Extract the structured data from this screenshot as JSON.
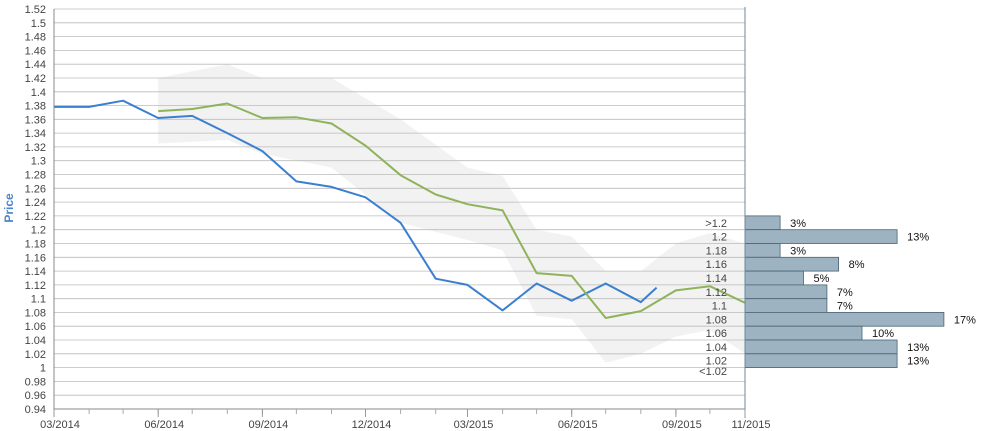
{
  "chart_data": {
    "type": "line",
    "title": "",
    "ylabel": "Price",
    "ylim": [
      0.94,
      1.52
    ],
    "ytick_step": 0.02,
    "yticks": [
      "0.94",
      "0.96",
      "0.98",
      "1",
      "1.02",
      "1.04",
      "1.06",
      "1.08",
      "1.1",
      "1.12",
      "1.14",
      "1.16",
      "1.18",
      "1.2",
      "1.22",
      "1.24",
      "1.26",
      "1.28",
      "1.3",
      "1.32",
      "1.34",
      "1.36",
      "1.38",
      "1.4",
      "1.42",
      "1.44",
      "1.46",
      "1.48",
      "1.5",
      "1.52"
    ],
    "xlim": [
      "2014-03-01",
      "2015-11-01"
    ],
    "xticks": [
      {
        "date": "2014-03-01",
        "label": "03/2014"
      },
      {
        "date": "2014-06-01",
        "label": "06/2014"
      },
      {
        "date": "2014-09-01",
        "label": "09/2014"
      },
      {
        "date": "2014-12-01",
        "label": "12/2014"
      },
      {
        "date": "2015-03-01",
        "label": "03/2015"
      },
      {
        "date": "2015-06-01",
        "label": "06/2015"
      },
      {
        "date": "2015-09-01",
        "label": "09/2015"
      },
      {
        "date": "2015-11-01",
        "label": "11/2015"
      }
    ],
    "grid": true,
    "colors": {
      "actual": "#3a7fd0",
      "forecast": "#8fb35a",
      "band": "#f2f2f2",
      "grid": "#bbbbbb",
      "histogram": "#9db3c2",
      "histogram_edge": "#4a6373"
    },
    "series": [
      {
        "key": "actual",
        "points": [
          {
            "x": "2014-03-01",
            "y": 1.378
          },
          {
            "x": "2014-04-01",
            "y": 1.378
          },
          {
            "x": "2014-05-01",
            "y": 1.387
          },
          {
            "x": "2014-06-01",
            "y": 1.362
          },
          {
            "x": "2014-07-01",
            "y": 1.365
          },
          {
            "x": "2014-08-01",
            "y": 1.34
          },
          {
            "x": "2014-09-01",
            "y": 1.314
          },
          {
            "x": "2014-10-01",
            "y": 1.27
          },
          {
            "x": "2014-11-01",
            "y": 1.262
          },
          {
            "x": "2014-12-01",
            "y": 1.247
          },
          {
            "x": "2015-01-01",
            "y": 1.21
          },
          {
            "x": "2015-02-01",
            "y": 1.129
          },
          {
            "x": "2015-03-01",
            "y": 1.12
          },
          {
            "x": "2015-04-01",
            "y": 1.083
          },
          {
            "x": "2015-05-01",
            "y": 1.122
          },
          {
            "x": "2015-06-01",
            "y": 1.097
          },
          {
            "x": "2015-07-01",
            "y": 1.122
          },
          {
            "x": "2015-08-01",
            "y": 1.095
          },
          {
            "x": "2015-08-15",
            "y": 1.116
          }
        ]
      },
      {
        "key": "forecast",
        "points": [
          {
            "x": "2014-06-01",
            "y": 1.372
          },
          {
            "x": "2014-07-01",
            "y": 1.375
          },
          {
            "x": "2014-08-01",
            "y": 1.383
          },
          {
            "x": "2014-09-01",
            "y": 1.362
          },
          {
            "x": "2014-10-01",
            "y": 1.363
          },
          {
            "x": "2014-11-01",
            "y": 1.354
          },
          {
            "x": "2014-12-01",
            "y": 1.322
          },
          {
            "x": "2015-01-01",
            "y": 1.279
          },
          {
            "x": "2015-02-01",
            "y": 1.251
          },
          {
            "x": "2015-03-01",
            "y": 1.237
          },
          {
            "x": "2015-04-01",
            "y": 1.228
          },
          {
            "x": "2015-05-01",
            "y": 1.137
          },
          {
            "x": "2015-06-01",
            "y": 1.133
          },
          {
            "x": "2015-07-01",
            "y": 1.072
          },
          {
            "x": "2015-08-01",
            "y": 1.082
          },
          {
            "x": "2015-09-01",
            "y": 1.112
          },
          {
            "x": "2015-10-01",
            "y": 1.118
          },
          {
            "x": "2015-11-01",
            "y": 1.094
          }
        ]
      }
    ],
    "band": {
      "upper": [
        {
          "x": "2014-06-01",
          "y": 1.42
        },
        {
          "x": "2014-08-01",
          "y": 1.44
        },
        {
          "x": "2014-09-01",
          "y": 1.42
        },
        {
          "x": "2014-11-01",
          "y": 1.42
        },
        {
          "x": "2015-01-01",
          "y": 1.36
        },
        {
          "x": "2015-03-01",
          "y": 1.29
        },
        {
          "x": "2015-04-01",
          "y": 1.278
        },
        {
          "x": "2015-05-01",
          "y": 1.2
        },
        {
          "x": "2015-06-01",
          "y": 1.19
        },
        {
          "x": "2015-07-01",
          "y": 1.14
        },
        {
          "x": "2015-08-01",
          "y": 1.14
        },
        {
          "x": "2015-09-01",
          "y": 1.18
        },
        {
          "x": "2015-10-01",
          "y": 1.195
        },
        {
          "x": "2015-11-01",
          "y": 1.18
        }
      ],
      "lower": [
        {
          "x": "2014-06-01",
          "y": 1.325
        },
        {
          "x": "2014-08-01",
          "y": 1.33
        },
        {
          "x": "2014-09-01",
          "y": 1.31
        },
        {
          "x": "2014-11-01",
          "y": 1.29
        },
        {
          "x": "2015-01-01",
          "y": 1.21
        },
        {
          "x": "2015-03-01",
          "y": 1.185
        },
        {
          "x": "2015-04-01",
          "y": 1.17
        },
        {
          "x": "2015-05-01",
          "y": 1.075
        },
        {
          "x": "2015-06-01",
          "y": 1.07
        },
        {
          "x": "2015-07-01",
          "y": 1.007
        },
        {
          "x": "2015-08-01",
          "y": 1.02
        },
        {
          "x": "2015-09-01",
          "y": 1.045
        },
        {
          "x": "2015-10-01",
          "y": 1.055
        },
        {
          "x": "2015-11-01",
          "y": 1.02
        }
      ]
    },
    "histogram": {
      "bins": [
        {
          "label": ">1.2",
          "center": 1.21,
          "percent": 3,
          "text": "3%"
        },
        {
          "label": "1.2",
          "center": 1.19,
          "percent": 13,
          "text": "13%"
        },
        {
          "label": "1.18",
          "center": 1.17,
          "percent": 3,
          "text": "3%"
        },
        {
          "label": "1.16",
          "center": 1.15,
          "percent": 8,
          "text": "8%"
        },
        {
          "label": "1.14",
          "center": 1.13,
          "percent": 5,
          "text": "5%"
        },
        {
          "label": "1.12",
          "center": 1.11,
          "percent": 7,
          "text": "7%"
        },
        {
          "label": "1.1",
          "center": 1.09,
          "percent": 7,
          "text": "7%"
        },
        {
          "label": "1.08",
          "center": 1.07,
          "percent": 17,
          "text": "17%"
        },
        {
          "label": "1.06",
          "center": 1.05,
          "percent": 10,
          "text": "10%"
        },
        {
          "label": "1.04",
          "center": 1.03,
          "percent": 13,
          "text": "13%"
        },
        {
          "label": "1.02",
          "center": 1.01,
          "percent": 13,
          "text": "13%"
        },
        {
          "label": "<1.02",
          "center": 0.995,
          "percent": 0,
          "text": ""
        }
      ]
    }
  }
}
